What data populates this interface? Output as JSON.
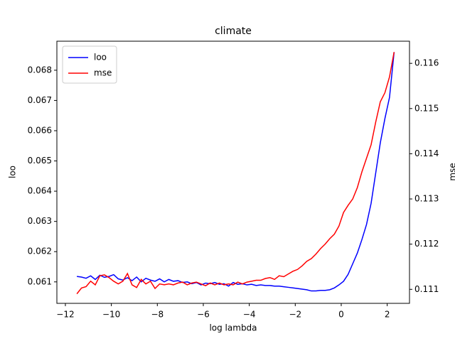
{
  "chart_data": {
    "type": "line",
    "title": "climate",
    "x_label": "log lambda",
    "y_label": "loo",
    "y2_label": "mse",
    "x": [
      -11.5,
      -11.3,
      -11.1,
      -10.9,
      -10.7,
      -10.5,
      -10.3,
      -10.1,
      -9.9,
      -9.7,
      -9.5,
      -9.3,
      -9.1,
      -8.9,
      -8.7,
      -8.5,
      -8.3,
      -8.1,
      -7.9,
      -7.7,
      -7.5,
      -7.3,
      -7.1,
      -6.9,
      -6.7,
      -6.5,
      -6.3,
      -6.1,
      -5.9,
      -5.7,
      -5.5,
      -5.3,
      -5.1,
      -4.9,
      -4.7,
      -4.5,
      -4.3,
      -4.1,
      -3.9,
      -3.7,
      -3.5,
      -3.3,
      -3.1,
      -2.9,
      -2.7,
      -2.5,
      -2.3,
      -2.1,
      -1.9,
      -1.7,
      -1.5,
      -1.3,
      -1.1,
      -0.9,
      -0.7,
      -0.5,
      -0.3,
      -0.1,
      0.1,
      0.3,
      0.5,
      0.7,
      0.9,
      1.1,
      1.3,
      1.5,
      1.7,
      1.9,
      2.1,
      2.3
    ],
    "series": [
      {
        "name": "loo",
        "color": "#0000ff",
        "axis": "y",
        "values": [
          0.06118,
          0.06116,
          0.06112,
          0.0612,
          0.06108,
          0.06122,
          0.06115,
          0.06118,
          0.06124,
          0.0611,
          0.06106,
          0.06114,
          0.06104,
          0.06116,
          0.061,
          0.06112,
          0.06106,
          0.06102,
          0.0611,
          0.061,
          0.06108,
          0.06102,
          0.06104,
          0.06098,
          0.061,
          0.06094,
          0.06098,
          0.0609,
          0.06096,
          0.06094,
          0.06098,
          0.06092,
          0.06094,
          0.06086,
          0.06098,
          0.06092,
          0.06094,
          0.0609,
          0.06092,
          0.06088,
          0.0609,
          0.06088,
          0.06088,
          0.06086,
          0.06086,
          0.06084,
          0.06082,
          0.0608,
          0.06078,
          0.06076,
          0.06074,
          0.0607,
          0.0607,
          0.06072,
          0.06072,
          0.06074,
          0.0608,
          0.0609,
          0.06102,
          0.06125,
          0.0616,
          0.06195,
          0.0624,
          0.0629,
          0.0636,
          0.0646,
          0.0656,
          0.0664,
          0.0671,
          0.0686
        ]
      },
      {
        "name": "mse",
        "color": "#ff0000",
        "axis": "y2",
        "values": [
          0.1109,
          0.11103,
          0.11106,
          0.11118,
          0.1111,
          0.1113,
          0.11132,
          0.11126,
          0.11118,
          0.11112,
          0.11118,
          0.11135,
          0.1111,
          0.11104,
          0.11122,
          0.11112,
          0.11118,
          0.11102,
          0.11112,
          0.1111,
          0.11112,
          0.1111,
          0.11114,
          0.11116,
          0.1111,
          0.11114,
          0.11116,
          0.11112,
          0.11108,
          0.11114,
          0.1111,
          0.11114,
          0.1111,
          0.11112,
          0.1111,
          0.11116,
          0.11112,
          0.11116,
          0.11118,
          0.1112,
          0.1112,
          0.11124,
          0.11126,
          0.11122,
          0.1113,
          0.11128,
          0.11134,
          0.1114,
          0.11144,
          0.11152,
          0.11162,
          0.11168,
          0.11178,
          0.1119,
          0.112,
          0.11212,
          0.11222,
          0.1124,
          0.1127,
          0.11286,
          0.113,
          0.11325,
          0.1136,
          0.1139,
          0.1142,
          0.1147,
          0.11515,
          0.11535,
          0.1157,
          0.11625
        ]
      }
    ],
    "xlim": [
      -12.37,
      2.97
    ],
    "xticks": [
      {
        "value": -12,
        "label": "−12"
      },
      {
        "value": -10,
        "label": "−10"
      },
      {
        "value": -8,
        "label": "−8"
      },
      {
        "value": -6,
        "label": "−6"
      },
      {
        "value": -4,
        "label": "−4"
      },
      {
        "value": -2,
        "label": "−2"
      },
      0,
      2
    ],
    "ylim": [
      0.06029,
      0.06896
    ],
    "yticks": [
      0.061,
      0.062,
      0.063,
      0.064,
      0.065,
      0.066,
      0.067,
      0.068
    ],
    "y2lim": [
      0.11069,
      0.11649
    ],
    "y2ticks": [
      0.111,
      0.112,
      0.113,
      0.114,
      0.115,
      0.116
    ],
    "legend": "upper left"
  }
}
